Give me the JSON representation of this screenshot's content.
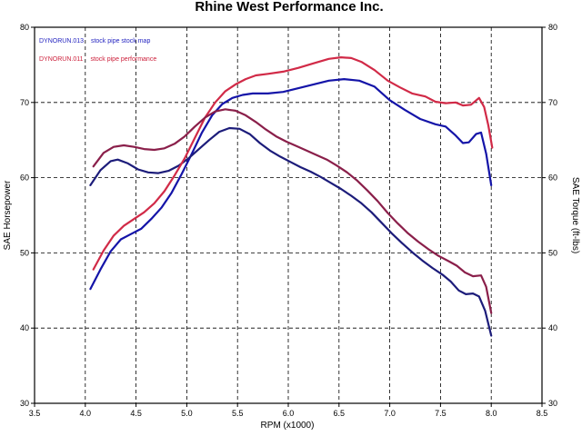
{
  "chart_data": {
    "type": "line",
    "title": "Rhine West Performance Inc.",
    "xlabel": "RPM (x1000)",
    "ylabel_left": "SAE Horsepower",
    "ylabel_right": "SAE Torque (ft-lbs)",
    "xlim": [
      3.5,
      8.5
    ],
    "ylim": [
      30,
      80
    ],
    "x_ticks": [
      "3.5",
      "4.0",
      "4.5",
      "5.0",
      "5.5",
      "6.0",
      "6.5",
      "7.0",
      "7.5",
      "8.0",
      "8.5"
    ],
    "y_ticks_left": [
      "30",
      "40",
      "50",
      "60",
      "70",
      "80"
    ],
    "y_ticks_right": [
      "30",
      "40",
      "50",
      "60",
      "70",
      "80"
    ],
    "grid": true,
    "legend_position": "top-left",
    "legend": [
      {
        "id": "DYNORUN.013",
        "label": "stock pipe stock map",
        "color": "#1f1fbf"
      },
      {
        "id": "DYNORUN.011",
        "label": "stock pipe performance",
        "color": "#cc1f3a"
      }
    ],
    "series": [
      {
        "name": "DYNORUN.013 stock pipe stock map",
        "measure": "SAE Horsepower",
        "color": "#1414a8",
        "points": [
          [
            4.05,
            45.2
          ],
          [
            4.15,
            47.8
          ],
          [
            4.25,
            50.2
          ],
          [
            4.35,
            51.8
          ],
          [
            4.45,
            52.5
          ],
          [
            4.55,
            53.2
          ],
          [
            4.65,
            54.5
          ],
          [
            4.75,
            56.0
          ],
          [
            4.85,
            58.0
          ],
          [
            4.95,
            60.5
          ],
          [
            5.05,
            63.2
          ],
          [
            5.15,
            66.0
          ],
          [
            5.25,
            68.3
          ],
          [
            5.35,
            69.8
          ],
          [
            5.45,
            70.6
          ],
          [
            5.55,
            71.0
          ],
          [
            5.65,
            71.2
          ],
          [
            5.8,
            71.2
          ],
          [
            5.95,
            71.4
          ],
          [
            6.1,
            71.9
          ],
          [
            6.25,
            72.4
          ],
          [
            6.4,
            72.9
          ],
          [
            6.55,
            73.1
          ],
          [
            6.7,
            72.9
          ],
          [
            6.85,
            72.1
          ],
          [
            7.0,
            70.3
          ],
          [
            7.15,
            69.0
          ],
          [
            7.3,
            67.8
          ],
          [
            7.45,
            67.1
          ],
          [
            7.55,
            66.8
          ],
          [
            7.65,
            65.6
          ],
          [
            7.72,
            64.6
          ],
          [
            7.78,
            64.7
          ],
          [
            7.85,
            65.8
          ],
          [
            7.9,
            66.0
          ],
          [
            7.95,
            63.2
          ],
          [
            8.0,
            59.0
          ]
        ]
      },
      {
        "name": "DYNORUN.013 stock pipe stock map",
        "measure": "SAE Torque",
        "color": "#1c1c7a",
        "points": [
          [
            4.05,
            59.0
          ],
          [
            4.15,
            61.0
          ],
          [
            4.25,
            62.2
          ],
          [
            4.32,
            62.4
          ],
          [
            4.42,
            61.9
          ],
          [
            4.52,
            61.1
          ],
          [
            4.62,
            60.7
          ],
          [
            4.72,
            60.6
          ],
          [
            4.82,
            60.9
          ],
          [
            4.92,
            61.6
          ],
          [
            5.02,
            62.6
          ],
          [
            5.12,
            63.8
          ],
          [
            5.22,
            65.0
          ],
          [
            5.32,
            66.1
          ],
          [
            5.42,
            66.6
          ],
          [
            5.52,
            66.5
          ],
          [
            5.62,
            65.8
          ],
          [
            5.72,
            64.6
          ],
          [
            5.82,
            63.6
          ],
          [
            5.92,
            62.8
          ],
          [
            6.02,
            62.1
          ],
          [
            6.12,
            61.4
          ],
          [
            6.22,
            60.8
          ],
          [
            6.32,
            60.1
          ],
          [
            6.42,
            59.3
          ],
          [
            6.52,
            58.5
          ],
          [
            6.62,
            57.6
          ],
          [
            6.72,
            56.6
          ],
          [
            6.82,
            55.4
          ],
          [
            6.92,
            54.0
          ],
          [
            7.02,
            52.6
          ],
          [
            7.12,
            51.3
          ],
          [
            7.22,
            50.1
          ],
          [
            7.32,
            49.0
          ],
          [
            7.42,
            48.0
          ],
          [
            7.52,
            47.1
          ],
          [
            7.6,
            46.2
          ],
          [
            7.68,
            45.0
          ],
          [
            7.75,
            44.5
          ],
          [
            7.82,
            44.6
          ],
          [
            7.88,
            44.2
          ],
          [
            7.94,
            42.3
          ],
          [
            8.0,
            39.0
          ]
        ]
      },
      {
        "name": "DYNORUN.011 stock pipe performance",
        "measure": "SAE Horsepower",
        "color": "#d12a47",
        "points": [
          [
            4.08,
            47.8
          ],
          [
            4.18,
            50.3
          ],
          [
            4.28,
            52.3
          ],
          [
            4.38,
            53.6
          ],
          [
            4.48,
            54.5
          ],
          [
            4.58,
            55.4
          ],
          [
            4.68,
            56.6
          ],
          [
            4.78,
            58.2
          ],
          [
            4.88,
            60.3
          ],
          [
            4.98,
            62.6
          ],
          [
            5.08,
            65.3
          ],
          [
            5.18,
            68.0
          ],
          [
            5.28,
            70.0
          ],
          [
            5.38,
            71.5
          ],
          [
            5.48,
            72.4
          ],
          [
            5.58,
            73.1
          ],
          [
            5.68,
            73.6
          ],
          [
            5.8,
            73.8
          ],
          [
            5.95,
            74.1
          ],
          [
            6.1,
            74.6
          ],
          [
            6.25,
            75.2
          ],
          [
            6.4,
            75.8
          ],
          [
            6.52,
            76.0
          ],
          [
            6.62,
            75.9
          ],
          [
            6.72,
            75.4
          ],
          [
            6.85,
            74.3
          ],
          [
            6.98,
            72.9
          ],
          [
            7.1,
            72.0
          ],
          [
            7.22,
            71.2
          ],
          [
            7.35,
            70.8
          ],
          [
            7.45,
            70.1
          ],
          [
            7.55,
            69.9
          ],
          [
            7.65,
            70.0
          ],
          [
            7.72,
            69.6
          ],
          [
            7.8,
            69.7
          ],
          [
            7.88,
            70.6
          ],
          [
            7.93,
            69.4
          ],
          [
            7.97,
            67.0
          ],
          [
            8.01,
            64.0
          ]
        ]
      },
      {
        "name": "DYNORUN.011 stock pipe performance",
        "measure": "SAE Torque",
        "color": "#8a1f4a",
        "points": [
          [
            4.08,
            61.5
          ],
          [
            4.18,
            63.3
          ],
          [
            4.28,
            64.1
          ],
          [
            4.38,
            64.3
          ],
          [
            4.48,
            64.1
          ],
          [
            4.58,
            63.8
          ],
          [
            4.68,
            63.7
          ],
          [
            4.78,
            63.9
          ],
          [
            4.88,
            64.5
          ],
          [
            4.98,
            65.5
          ],
          [
            5.08,
            66.8
          ],
          [
            5.18,
            68.0
          ],
          [
            5.28,
            68.8
          ],
          [
            5.38,
            69.1
          ],
          [
            5.48,
            68.9
          ],
          [
            5.58,
            68.3
          ],
          [
            5.68,
            67.4
          ],
          [
            5.78,
            66.4
          ],
          [
            5.88,
            65.5
          ],
          [
            5.98,
            64.8
          ],
          [
            6.08,
            64.2
          ],
          [
            6.18,
            63.6
          ],
          [
            6.28,
            63.0
          ],
          [
            6.38,
            62.4
          ],
          [
            6.48,
            61.6
          ],
          [
            6.58,
            60.7
          ],
          [
            6.68,
            59.6
          ],
          [
            6.78,
            58.3
          ],
          [
            6.88,
            56.9
          ],
          [
            6.98,
            55.3
          ],
          [
            7.08,
            53.9
          ],
          [
            7.18,
            52.6
          ],
          [
            7.28,
            51.5
          ],
          [
            7.38,
            50.5
          ],
          [
            7.48,
            49.6
          ],
          [
            7.58,
            48.9
          ],
          [
            7.66,
            48.3
          ],
          [
            7.74,
            47.4
          ],
          [
            7.82,
            46.9
          ],
          [
            7.9,
            47.0
          ],
          [
            7.95,
            45.5
          ],
          [
            8.0,
            42.0
          ]
        ]
      }
    ]
  }
}
